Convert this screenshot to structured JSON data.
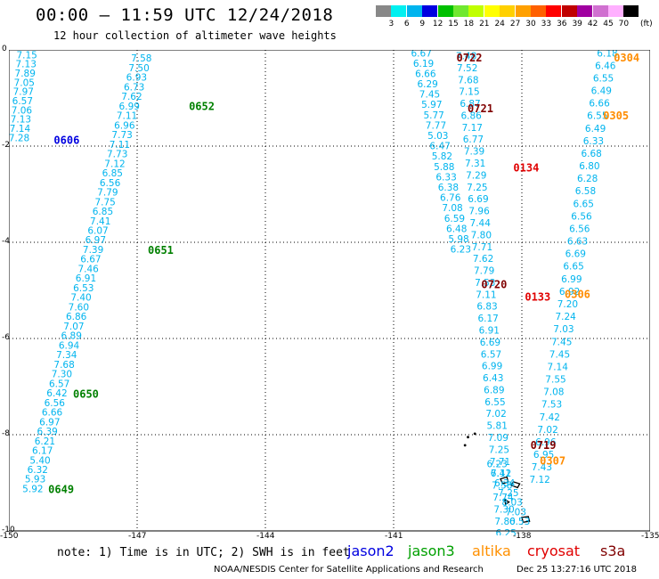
{
  "header": {
    "title": "00:00 – 11:59 UTC 12/24/2018",
    "subtitle": "12 hour collection of altimeter wave heights"
  },
  "colorbar": {
    "unit": "(ft)",
    "colors": [
      "#888888",
      "#00f0f0",
      "#00b4ee",
      "#0000e0",
      "#00c000",
      "#70e830",
      "#c0ff00",
      "#ffff00",
      "#ffd000",
      "#ffa000",
      "#ff6000",
      "#ff0000",
      "#c00000",
      "#a000a0",
      "#d070d0",
      "#ffb0ff",
      "#000000"
    ],
    "labels": [
      "3",
      "6",
      "9",
      "12",
      "15",
      "18",
      "21",
      "24",
      "27",
      "30",
      "33",
      "36",
      "39",
      "42",
      "45",
      "70"
    ]
  },
  "map": {
    "lon_range": [
      -150,
      -135
    ],
    "lat_range": [
      -10,
      0
    ],
    "x_ticks": [
      "-150",
      "-147",
      "-144",
      "-141",
      "-138",
      "-135"
    ],
    "y_ticks": [
      "0",
      "-2",
      "-4",
      "-6",
      "-8",
      "-10"
    ],
    "tracks": [
      {
        "id": "A",
        "start": [
          -149.58,
          -0.1
        ],
        "end": [
          -149.76,
          -1.82
        ],
        "values": [
          "7.15",
          "7.13",
          "7.89",
          "7.05",
          "7.97",
          "6.57",
          "7.06",
          "7.13",
          "7.14",
          "7.28"
        ]
      },
      {
        "id": "B",
        "start": [
          -146.9,
          -0.17
        ],
        "end": [
          -149.44,
          -9.12
        ],
        "values": [
          "7.58",
          "7.50",
          "6.93",
          "6.73",
          "7.62",
          "6.99",
          "7.11",
          "6.96",
          "7.73",
          "7.11",
          "7.73",
          "7.12",
          "6.85",
          "6.56",
          "7.79",
          "7.75",
          "6.85",
          "7.41",
          "6.07",
          "6.97",
          "7.39",
          "6.67",
          "7.46",
          "6.91",
          "6.53",
          "7.40",
          "7.60",
          "6.86",
          "7.07",
          "6.89",
          "6.94",
          "7.34",
          "7.68",
          "7.30",
          "6.57",
          "6.42",
          "6.56",
          "6.66",
          "6.97",
          "6.39",
          "6.21",
          "6.17",
          "5.40",
          "6.32",
          "5.93",
          "5.92"
        ]
      },
      {
        "id": "C",
        "start": [
          -140.35,
          -0.06
        ],
        "end": [
          -139.43,
          -4.14
        ],
        "values": [
          "6.67",
          "6.19",
          "6.66",
          "6.29",
          "7.45",
          "5.97",
          "5.77",
          "7.77",
          "5.03",
          "6.47",
          "5.82",
          "5.88",
          "6.33",
          "6.38",
          "6.76",
          "7.08",
          "6.59",
          "6.48",
          "5.98",
          "6.23"
        ]
      },
      {
        "id": "D",
        "start": [
          -139.3,
          -0.12
        ],
        "end": [
          -138.37,
          -10.04
        ],
        "values": [
          "7.48",
          "7.52",
          "7.68",
          "7.15",
          "6.87",
          "6.86",
          "7.17",
          "6.77",
          "7.39",
          "7.31",
          "7.29",
          "7.25",
          "6.69",
          "7.96",
          "7.44",
          "7.80",
          "7.71",
          "7.62",
          "7.79",
          "7.53",
          "7.11",
          "6.83",
          "6.17",
          "6.91",
          "6.69",
          "6.57",
          "6.99",
          "6.43",
          "6.89",
          "6.55",
          "7.02",
          "5.81",
          "7.09",
          "7.25",
          "7.71",
          "7.12",
          "7.58",
          "7.74",
          "7.30",
          "7.80",
          "6.25"
        ]
      },
      {
        "id": "E",
        "start": [
          -136.0,
          -0.06
        ],
        "end": [
          -137.58,
          -8.93
        ],
        "values": [
          "6.18",
          "6.46",
          "6.55",
          "6.49",
          "6.66",
          "6.55",
          "6.49",
          "6.33",
          "6.68",
          "6.80",
          "6.28",
          "6.58",
          "6.65",
          "6.56",
          "6.56",
          "6.63",
          "6.69",
          "6.65",
          "6.99",
          "6.92",
          "7.20",
          "7.24",
          "7.03",
          "7.45",
          "7.45",
          "7.14",
          "7.55",
          "7.08",
          "7.53",
          "7.42",
          "7.02",
          "6.96",
          "6.95",
          "7.43",
          "7.12"
        ]
      },
      {
        "id": "F",
        "start": [
          -138.58,
          -8.6
        ],
        "end": [
          -138.05,
          -9.8
        ],
        "values": [
          "6.23",
          "6.41",
          "6.34",
          "7.25",
          "8.03",
          "7.03",
          "6.53"
        ]
      }
    ],
    "time_labels": [
      {
        "text": "0606",
        "color": "#0000e0",
        "lon": -148.95,
        "lat": -1.88
      },
      {
        "text": "0652",
        "color": "#008000",
        "lon": -145.79,
        "lat": -1.18
      },
      {
        "text": "0651",
        "color": "#008000",
        "lon": -146.75,
        "lat": -4.17
      },
      {
        "text": "0650",
        "color": "#008000",
        "lon": -148.5,
        "lat": -7.16
      },
      {
        "text": "0649",
        "color": "#008000",
        "lon": -149.08,
        "lat": -9.14
      },
      {
        "text": "0722",
        "color": "#800000",
        "lon": -139.53,
        "lat": -0.17
      },
      {
        "text": "0721",
        "color": "#800000",
        "lon": -139.27,
        "lat": -1.22
      },
      {
        "text": "0720",
        "color": "#800000",
        "lon": -138.95,
        "lat": -4.88
      },
      {
        "text": "0719",
        "color": "#800000",
        "lon": -137.8,
        "lat": -8.22
      },
      {
        "text": "0134",
        "color": "#e00000",
        "lon": -138.2,
        "lat": -2.45
      },
      {
        "text": "0133",
        "color": "#e00000",
        "lon": -137.93,
        "lat": -5.14
      },
      {
        "text": "0304",
        "color": "#ff8c00",
        "lon": -135.85,
        "lat": -0.17
      },
      {
        "text": "0305",
        "color": "#ff8c00",
        "lon": -136.1,
        "lat": -1.37
      },
      {
        "text": "0306",
        "color": "#ff8c00",
        "lon": -137.0,
        "lat": -5.08
      },
      {
        "text": "0307",
        "color": "#ff8c00",
        "lon": -137.58,
        "lat": -8.55
      }
    ]
  },
  "footer": {
    "note": "note: 1) Time is in UTC; 2) SWH is in feet",
    "satellites": [
      {
        "name": "jason2",
        "color": "#0000e0"
      },
      {
        "name": "jason3",
        "color": "#00a000"
      },
      {
        "name": "altika",
        "color": "#ff9000"
      },
      {
        "name": "cryosat",
        "color": "#e00000"
      },
      {
        "name": "s3a",
        "color": "#800000"
      }
    ],
    "credit": "NOAA/NESDIS Center for Satellite Applications and Research",
    "timestamp": "Dec 25 13:27:16 UTC 2018"
  }
}
